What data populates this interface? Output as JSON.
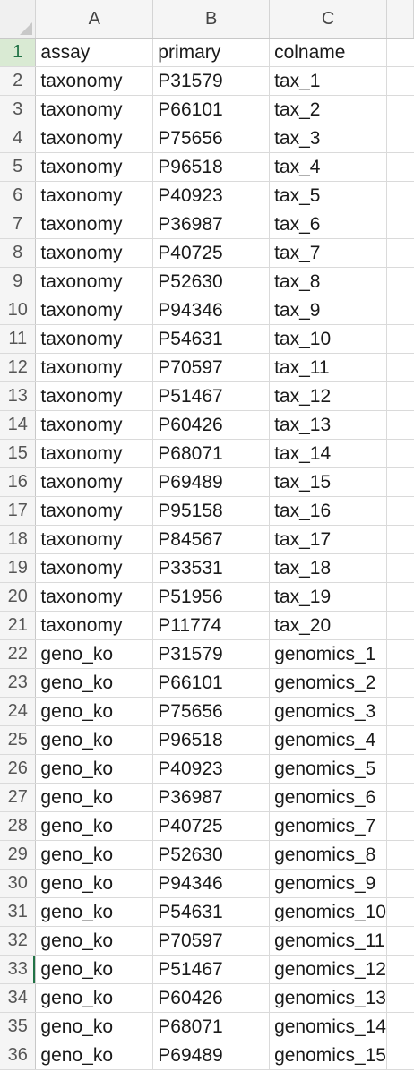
{
  "columns": [
    {
      "letter": "A"
    },
    {
      "letter": "B"
    },
    {
      "letter": "C"
    }
  ],
  "active_row_header": "1",
  "selection_marker_row": "33",
  "rows": [
    {
      "n": "1",
      "a": "assay",
      "b": "primary",
      "c": "colname"
    },
    {
      "n": "2",
      "a": "taxonomy",
      "b": "P31579",
      "c": "tax_1"
    },
    {
      "n": "3",
      "a": "taxonomy",
      "b": "P66101",
      "c": "tax_2"
    },
    {
      "n": "4",
      "a": "taxonomy",
      "b": "P75656",
      "c": "tax_3"
    },
    {
      "n": "5",
      "a": "taxonomy",
      "b": "P96518",
      "c": "tax_4"
    },
    {
      "n": "6",
      "a": "taxonomy",
      "b": "P40923",
      "c": "tax_5"
    },
    {
      "n": "7",
      "a": "taxonomy",
      "b": "P36987",
      "c": "tax_6"
    },
    {
      "n": "8",
      "a": "taxonomy",
      "b": "P40725",
      "c": "tax_7"
    },
    {
      "n": "9",
      "a": "taxonomy",
      "b": "P52630",
      "c": "tax_8"
    },
    {
      "n": "10",
      "a": "taxonomy",
      "b": "P94346",
      "c": "tax_9"
    },
    {
      "n": "11",
      "a": "taxonomy",
      "b": "P54631",
      "c": "tax_10"
    },
    {
      "n": "12",
      "a": "taxonomy",
      "b": "P70597",
      "c": "tax_11"
    },
    {
      "n": "13",
      "a": "taxonomy",
      "b": "P51467",
      "c": "tax_12"
    },
    {
      "n": "14",
      "a": "taxonomy",
      "b": "P60426",
      "c": "tax_13"
    },
    {
      "n": "15",
      "a": "taxonomy",
      "b": "P68071",
      "c": "tax_14"
    },
    {
      "n": "16",
      "a": "taxonomy",
      "b": "P69489",
      "c": "tax_15"
    },
    {
      "n": "17",
      "a": "taxonomy",
      "b": "P95158",
      "c": "tax_16"
    },
    {
      "n": "18",
      "a": "taxonomy",
      "b": "P84567",
      "c": "tax_17"
    },
    {
      "n": "19",
      "a": "taxonomy",
      "b": "P33531",
      "c": "tax_18"
    },
    {
      "n": "20",
      "a": "taxonomy",
      "b": "P51956",
      "c": "tax_19"
    },
    {
      "n": "21",
      "a": "taxonomy",
      "b": "P11774",
      "c": "tax_20"
    },
    {
      "n": "22",
      "a": "geno_ko",
      "b": "P31579",
      "c": "genomics_1"
    },
    {
      "n": "23",
      "a": "geno_ko",
      "b": "P66101",
      "c": "genomics_2"
    },
    {
      "n": "24",
      "a": "geno_ko",
      "b": "P75656",
      "c": "genomics_3"
    },
    {
      "n": "25",
      "a": "geno_ko",
      "b": "P96518",
      "c": "genomics_4"
    },
    {
      "n": "26",
      "a": "geno_ko",
      "b": "P40923",
      "c": "genomics_5"
    },
    {
      "n": "27",
      "a": "geno_ko",
      "b": "P36987",
      "c": "genomics_6"
    },
    {
      "n": "28",
      "a": "geno_ko",
      "b": "P40725",
      "c": "genomics_7"
    },
    {
      "n": "29",
      "a": "geno_ko",
      "b": "P52630",
      "c": "genomics_8"
    },
    {
      "n": "30",
      "a": "geno_ko",
      "b": "P94346",
      "c": "genomics_9"
    },
    {
      "n": "31",
      "a": "geno_ko",
      "b": "P54631",
      "c": "genomics_10"
    },
    {
      "n": "32",
      "a": "geno_ko",
      "b": "P70597",
      "c": "genomics_11"
    },
    {
      "n": "33",
      "a": "geno_ko",
      "b": "P51467",
      "c": "genomics_12"
    },
    {
      "n": "34",
      "a": "geno_ko",
      "b": "P60426",
      "c": "genomics_13"
    },
    {
      "n": "35",
      "a": "geno_ko",
      "b": "P68071",
      "c": "genomics_14"
    },
    {
      "n": "36",
      "a": "geno_ko",
      "b": "P69489",
      "c": "genomics_15"
    }
  ],
  "colors": {
    "header_bg": "#f5f5f5",
    "active_header_bg": "#d9ead3",
    "accent": "#217346",
    "gridline": "#dadada"
  },
  "icons": {
    "corner": "select-all-triangle-icon"
  }
}
